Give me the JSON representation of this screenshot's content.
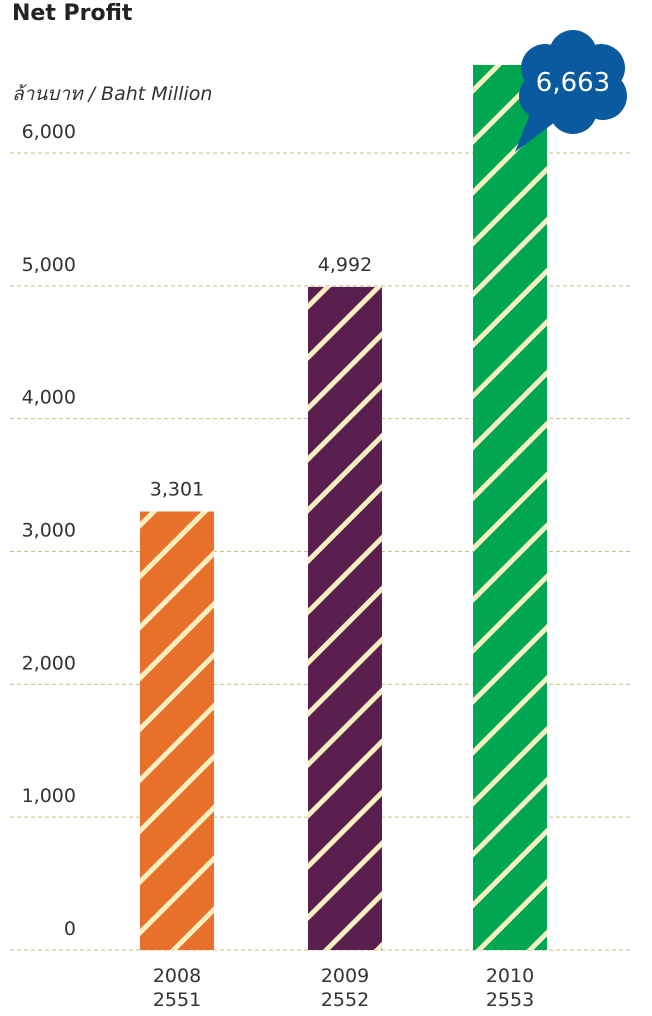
{
  "chart_data": {
    "type": "bar",
    "title": "Net Profit",
    "y_label": "ล้านบาท / Baht Million",
    "categories": [
      "2008",
      "2009",
      "2010"
    ],
    "categories_be": [
      "2551",
      "2552",
      "2553"
    ],
    "values": [
      3301,
      4992,
      6663
    ],
    "value_labels": [
      "3,301",
      "4,992",
      "6,663"
    ],
    "colors": [
      "#e8702a",
      "#5a1e4f",
      "#00a651"
    ],
    "stripe_color": "#f6efbf",
    "ylim": [
      0,
      6000
    ],
    "yticks": [
      0,
      {
        "value": 1000,
        "label": "1,000"
      },
      {
        "value": 2000,
        "label": "2,000"
      },
      {
        "value": 3000,
        "label": "3,000"
      },
      {
        "value": 4000,
        "label": "4,000"
      },
      {
        "value": 5000,
        "label": "5,000"
      },
      {
        "value": 6000,
        "label": "6,000"
      }
    ],
    "grid": true,
    "highlight_color": "#0a5aa0"
  }
}
